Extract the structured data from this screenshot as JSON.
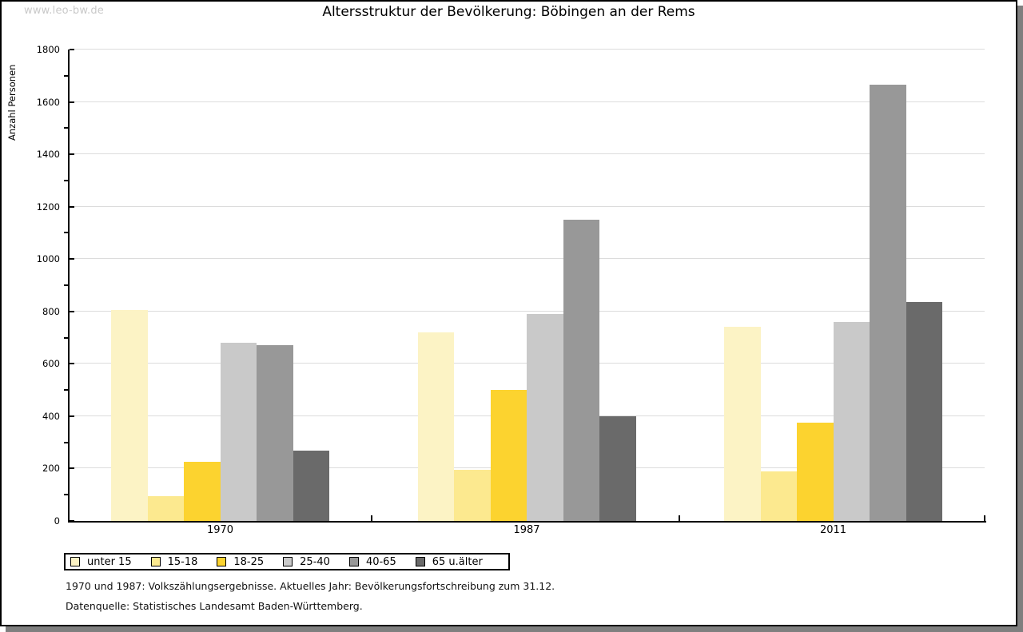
{
  "watermark": "www.leo-bw.de",
  "title": "Altersstruktur der Bevölkerung: Böbingen an der Rems",
  "footnotes": [
    "1970 und 1987: Volkszählungsergebnisse. Aktuelles Jahr: Bevölkerungsfortschreibung zum 31.12.",
    "Datenquelle: Statistisches Landesamt Baden-Württemberg."
  ],
  "chart_data": {
    "type": "bar",
    "title": "Altersstruktur der Bevölkerung: Böbingen an der Rems",
    "xlabel": "",
    "ylabel": "Anzahl Personen",
    "ylim": [
      0,
      1800
    ],
    "ytick_step": 200,
    "ytick_minor_step": 100,
    "grid": true,
    "gridline_color": "#dcdcdc",
    "legend_position": "bottom",
    "categories": [
      "1970",
      "1987",
      "2011"
    ],
    "series": [
      {
        "name": "unter 15",
        "color": "#fcf3c5",
        "values": [
          805,
          720,
          740
        ]
      },
      {
        "name": "15-18",
        "color": "#fce98f",
        "values": [
          95,
          195,
          190
        ]
      },
      {
        "name": "18-25",
        "color": "#fcd32f",
        "values": [
          225,
          500,
          375
        ]
      },
      {
        "name": "25-40",
        "color": "#c9c9c9",
        "values": [
          680,
          790,
          760
        ]
      },
      {
        "name": "40-65",
        "color": "#989898",
        "values": [
          670,
          1150,
          1665
        ]
      },
      {
        "name": "65 u.älter",
        "color": "#6a6a6a",
        "values": [
          270,
          400,
          835
        ]
      }
    ]
  }
}
